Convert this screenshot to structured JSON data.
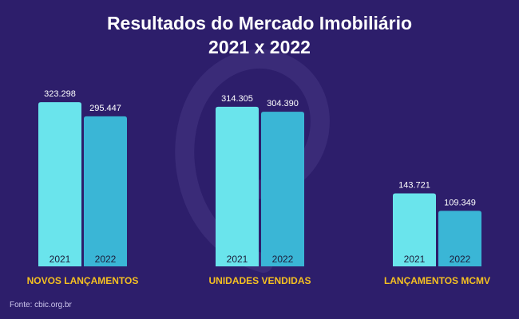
{
  "title_line1": "Resultados do Mercado Imobiliário",
  "title_line2": "2021 x 2022",
  "source": "Fonte: cbic.org.br",
  "colors": {
    "background": "#2d1e6b",
    "bar_2021": "#6ae4ec",
    "bar_2022": "#3ab6d6",
    "category_label": "#f5c021",
    "value_label": "#ffffff",
    "bar_year_text": "#1c1c3a",
    "watermark": "#3a2b78"
  },
  "chart_data": {
    "type": "bar",
    "categories": [
      "NOVOS LANÇAMENTOS",
      "UNIDADES VENDIDAS",
      "LANÇAMENTOS MCMV"
    ],
    "series": [
      {
        "year_label": "2021",
        "values": [
          323298,
          314305,
          143721
        ],
        "value_labels": [
          "323.298",
          "314.305",
          "143.721"
        ]
      },
      {
        "year_label": "2022",
        "values": [
          295447,
          304390,
          109349
        ],
        "value_labels": [
          "295.447",
          "304.390",
          "109.349"
        ]
      }
    ],
    "ylim": [
      0,
      336000
    ],
    "grid": false,
    "legend": "none"
  }
}
